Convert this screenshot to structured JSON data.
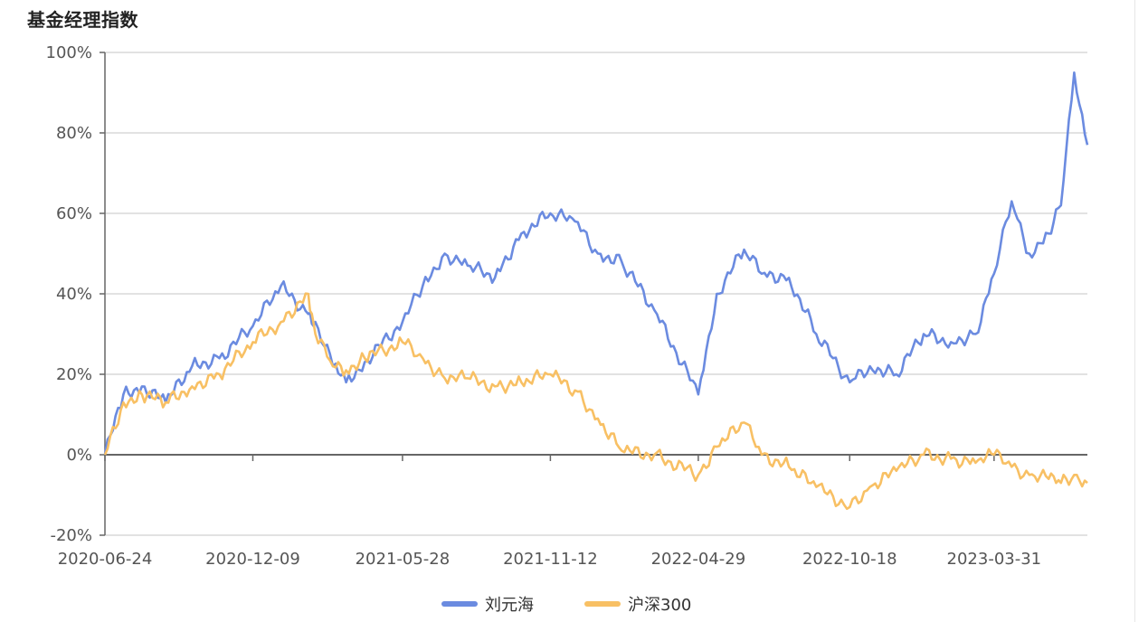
{
  "title": "基金经理指数",
  "chart_data": {
    "type": "line",
    "title": "基金经理指数",
    "xlabel": "",
    "ylabel": "",
    "ylim": [
      -20,
      100
    ],
    "y_ticks": [
      "-20%",
      "0%",
      "20%",
      "40%",
      "60%",
      "80%",
      "100%"
    ],
    "x_ticks": [
      "2020-06-24",
      "2020-12-09",
      "2021-05-28",
      "2021-11-12",
      "2022-04-29",
      "2022-10-18",
      "2023-03-31"
    ],
    "grid": true,
    "legend_position": "bottom-center",
    "x": [
      "2020-06-24",
      "2020-07-15",
      "2020-08-05",
      "2020-09-01",
      "2020-10-01",
      "2020-11-01",
      "2020-12-09",
      "2021-01-10",
      "2021-02-10",
      "2021-02-18",
      "2021-03-10",
      "2021-03-25",
      "2021-04-15",
      "2021-05-28",
      "2021-06-20",
      "2021-07-15",
      "2021-08-10",
      "2021-09-10",
      "2021-10-10",
      "2021-11-12",
      "2021-12-10",
      "2022-01-05",
      "2022-02-01",
      "2022-03-10",
      "2022-04-29",
      "2022-05-20",
      "2022-06-20",
      "2022-07-10",
      "2022-08-10",
      "2022-09-10",
      "2022-10-18",
      "2022-11-10",
      "2022-12-10",
      "2023-01-10",
      "2023-02-10",
      "2023-03-10",
      "2023-03-31",
      "2023-04-20",
      "2023-05-10",
      "2023-06-01",
      "2023-06-15",
      "2023-06-30",
      "2023-07-15"
    ],
    "series": [
      {
        "name": "刘元海",
        "color": "#6b8be0",
        "values": [
          0,
          15,
          17,
          13,
          22,
          24,
          32,
          42,
          35,
          33,
          22,
          18,
          23,
          33,
          42,
          50,
          47,
          44,
          55,
          60,
          58,
          50,
          48,
          36,
          15,
          40,
          51,
          45,
          44,
          30,
          18,
          22,
          20,
          30,
          28,
          30,
          45,
          63,
          50,
          55,
          62,
          95,
          77
        ]
      },
      {
        "name": "沪深300",
        "color": "#f8c064",
        "values": [
          0,
          13,
          15,
          13,
          17,
          20,
          28,
          33,
          40,
          30,
          22,
          21,
          24,
          28,
          24,
          19,
          19,
          17,
          18,
          20,
          16,
          9,
          1,
          0,
          -5,
          2,
          8,
          0,
          -3,
          -8,
          -13,
          -8,
          -4,
          0,
          -1,
          -2,
          0,
          -3,
          -5,
          -6,
          -7,
          -5,
          -7
        ]
      }
    ]
  },
  "legend": {
    "series_1": "刘元海",
    "series_2": "沪深300"
  }
}
